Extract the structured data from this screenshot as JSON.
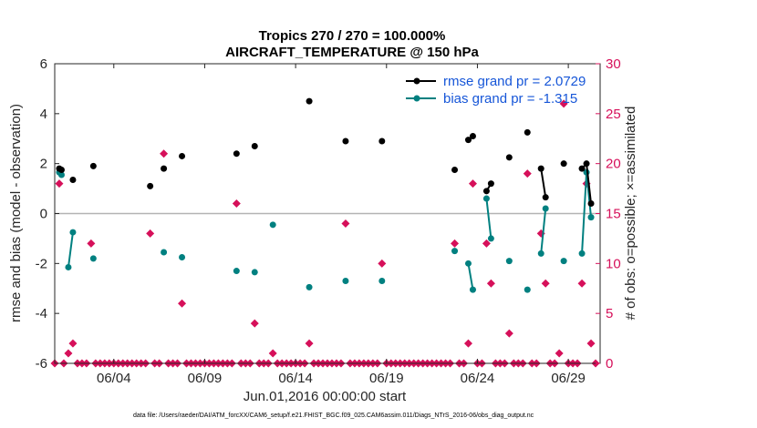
{
  "colors": {
    "rmse": "#000000",
    "bias": "#008080",
    "obs": "#d6105a",
    "legend_text": "#1656d8",
    "zero_line": "#b3b3b3",
    "axis": "#262626"
  },
  "footer": "data file: /Users/raeder/DAI/ATM_forcXX/CAM6_setup/f.e21.FHIST_BGC.f09_025.CAM6assim.011/Diags_NTrS_2016-06/obs_diag_output.nc",
  "chart_data": {
    "type": "line",
    "title": "Tropics 270 / 270 = 100.000%",
    "subtitle": "AIRCRAFT_TEMPERATURE @ 150 hPa",
    "xlabel": "Jun.01,2016 00:00:00 start",
    "ylabel": "rmse and bias (model - observation)",
    "y2label": "# of obs: o=possible; ×=assimilated",
    "xlim": [
      0.75,
      30.75
    ],
    "ylim": [
      -6,
      6
    ],
    "y2lim": [
      0,
      30
    ],
    "xticks": [
      {
        "x": 4,
        "label": "06/04"
      },
      {
        "x": 9,
        "label": "06/09"
      },
      {
        "x": 14,
        "label": "06/14"
      },
      {
        "x": 19,
        "label": "06/19"
      },
      {
        "x": 24,
        "label": "06/24"
      },
      {
        "x": 29,
        "label": "06/29"
      }
    ],
    "yticks": [
      -6,
      -4,
      -2,
      0,
      2,
      4,
      6
    ],
    "y2ticks": [
      0,
      5,
      10,
      15,
      20,
      25,
      30
    ],
    "legend": [
      {
        "name": "rmse grand pr = 2.0729",
        "series": "rmse"
      },
      {
        "name": "bias grand pr = -1.315",
        "series": "bias"
      }
    ],
    "rmse": [
      [
        [
          1.0,
          1.8
        ],
        [
          1.125,
          1.75
        ]
      ],
      [
        [
          1.75,
          1.35
        ]
      ],
      [
        [
          2.875,
          1.9
        ]
      ],
      [
        [
          6.0,
          1.1
        ]
      ],
      [
        [
          6.75,
          1.8
        ]
      ],
      [
        [
          7.75,
          2.3
        ]
      ],
      [
        [
          10.75,
          2.4
        ]
      ],
      [
        [
          11.75,
          2.7
        ]
      ],
      [
        [
          14.75,
          4.5
        ]
      ],
      [
        [
          16.75,
          2.9
        ]
      ],
      [
        [
          18.75,
          2.9
        ]
      ],
      [
        [
          22.75,
          1.75
        ]
      ],
      [
        [
          23.5,
          2.95
        ],
        [
          23.75,
          3.1
        ]
      ],
      [
        [
          24.5,
          0.9
        ],
        [
          24.75,
          1.2
        ]
      ],
      [
        [
          25.75,
          2.25
        ]
      ],
      [
        [
          26.75,
          3.25
        ]
      ],
      [
        [
          27.5,
          1.8
        ],
        [
          27.75,
          0.65
        ]
      ],
      [
        [
          28.75,
          2.0
        ]
      ],
      [
        [
          29.75,
          1.8
        ],
        [
          30.0,
          2.0
        ],
        [
          30.25,
          0.4
        ]
      ]
    ],
    "bias": [
      [
        [
          1.0,
          1.65
        ],
        [
          1.125,
          1.55
        ]
      ],
      [
        [
          1.5,
          -2.15
        ],
        [
          1.75,
          -0.75
        ]
      ],
      [
        [
          2.875,
          -1.8
        ]
      ],
      [
        [
          6.75,
          -1.55
        ]
      ],
      [
        [
          7.75,
          -1.75
        ]
      ],
      [
        [
          10.75,
          -2.3
        ]
      ],
      [
        [
          11.75,
          -2.35
        ]
      ],
      [
        [
          12.75,
          -0.45
        ]
      ],
      [
        [
          14.75,
          -2.95
        ]
      ],
      [
        [
          16.75,
          -2.7
        ]
      ],
      [
        [
          18.75,
          -2.7
        ]
      ],
      [
        [
          22.75,
          -1.5
        ]
      ],
      [
        [
          23.5,
          -2.0
        ],
        [
          23.75,
          -3.05
        ]
      ],
      [
        [
          24.5,
          0.6
        ],
        [
          24.75,
          -1.0
        ]
      ],
      [
        [
          25.75,
          -1.9
        ]
      ],
      [
        [
          26.75,
          -3.05
        ]
      ],
      [
        [
          27.5,
          -1.6
        ],
        [
          27.75,
          0.2
        ]
      ],
      [
        [
          28.75,
          -1.9
        ]
      ],
      [
        [
          29.75,
          -1.6
        ],
        [
          30.0,
          1.65
        ],
        [
          30.25,
          -0.15
        ]
      ]
    ],
    "obs_counts": [
      [
        0.75,
        0
      ],
      [
        1.0,
        18
      ],
      [
        1.25,
        0
      ],
      [
        1.5,
        1
      ],
      [
        1.75,
        2
      ],
      [
        2.0,
        0
      ],
      [
        2.25,
        0
      ],
      [
        2.5,
        0
      ],
      [
        2.75,
        12
      ],
      [
        3.0,
        0
      ],
      [
        3.25,
        0
      ],
      [
        3.5,
        0
      ],
      [
        3.75,
        0
      ],
      [
        4.0,
        0
      ],
      [
        4.25,
        0
      ],
      [
        4.5,
        0
      ],
      [
        4.75,
        0
      ],
      [
        5.0,
        0
      ],
      [
        5.25,
        0
      ],
      [
        5.5,
        0
      ],
      [
        5.75,
        0
      ],
      [
        6.0,
        13
      ],
      [
        6.25,
        0
      ],
      [
        6.5,
        0
      ],
      [
        6.75,
        21
      ],
      [
        7.0,
        0
      ],
      [
        7.25,
        0
      ],
      [
        7.5,
        0
      ],
      [
        7.75,
        6
      ],
      [
        8.0,
        0
      ],
      [
        8.25,
        0
      ],
      [
        8.5,
        0
      ],
      [
        8.75,
        0
      ],
      [
        9.0,
        0
      ],
      [
        9.25,
        0
      ],
      [
        9.5,
        0
      ],
      [
        9.75,
        0
      ],
      [
        10.0,
        0
      ],
      [
        10.25,
        0
      ],
      [
        10.5,
        0
      ],
      [
        10.75,
        16
      ],
      [
        11.0,
        0
      ],
      [
        11.25,
        0
      ],
      [
        11.5,
        0
      ],
      [
        11.75,
        4
      ],
      [
        12.0,
        0
      ],
      [
        12.25,
        0
      ],
      [
        12.5,
        0
      ],
      [
        12.75,
        1
      ],
      [
        13.0,
        0
      ],
      [
        13.25,
        0
      ],
      [
        13.5,
        0
      ],
      [
        13.75,
        0
      ],
      [
        14.0,
        0
      ],
      [
        14.25,
        0
      ],
      [
        14.5,
        0
      ],
      [
        14.75,
        2
      ],
      [
        15.0,
        0
      ],
      [
        15.25,
        0
      ],
      [
        15.5,
        0
      ],
      [
        15.75,
        0
      ],
      [
        16.0,
        0
      ],
      [
        16.25,
        0
      ],
      [
        16.5,
        0
      ],
      [
        16.75,
        14
      ],
      [
        17.0,
        0
      ],
      [
        17.25,
        0
      ],
      [
        17.5,
        0
      ],
      [
        17.75,
        0
      ],
      [
        18.0,
        0
      ],
      [
        18.25,
        0
      ],
      [
        18.5,
        0
      ],
      [
        18.75,
        10
      ],
      [
        19.0,
        0
      ],
      [
        19.25,
        0
      ],
      [
        19.5,
        0
      ],
      [
        19.75,
        0
      ],
      [
        20.0,
        0
      ],
      [
        20.25,
        0
      ],
      [
        20.5,
        0
      ],
      [
        20.75,
        0
      ],
      [
        21.0,
        0
      ],
      [
        21.25,
        0
      ],
      [
        21.5,
        0
      ],
      [
        21.75,
        0
      ],
      [
        22.0,
        0
      ],
      [
        22.25,
        0
      ],
      [
        22.5,
        0
      ],
      [
        22.75,
        12
      ],
      [
        23.0,
        0
      ],
      [
        23.25,
        0
      ],
      [
        23.5,
        2
      ],
      [
        23.75,
        18
      ],
      [
        24.0,
        0
      ],
      [
        24.25,
        0
      ],
      [
        24.5,
        12
      ],
      [
        24.75,
        8
      ],
      [
        25.0,
        0
      ],
      [
        25.25,
        0
      ],
      [
        25.5,
        0
      ],
      [
        25.75,
        3
      ],
      [
        26.0,
        0
      ],
      [
        26.25,
        0
      ],
      [
        26.5,
        0
      ],
      [
        26.75,
        19
      ],
      [
        27.0,
        0
      ],
      [
        27.25,
        0
      ],
      [
        27.5,
        13
      ],
      [
        27.75,
        8
      ],
      [
        28.0,
        0
      ],
      [
        28.25,
        0
      ],
      [
        28.5,
        1
      ],
      [
        28.75,
        26
      ],
      [
        29.0,
        0
      ],
      [
        29.25,
        0
      ],
      [
        29.5,
        0
      ],
      [
        29.75,
        8
      ],
      [
        30.0,
        18
      ],
      [
        30.25,
        2
      ],
      [
        30.5,
        0
      ]
    ]
  }
}
